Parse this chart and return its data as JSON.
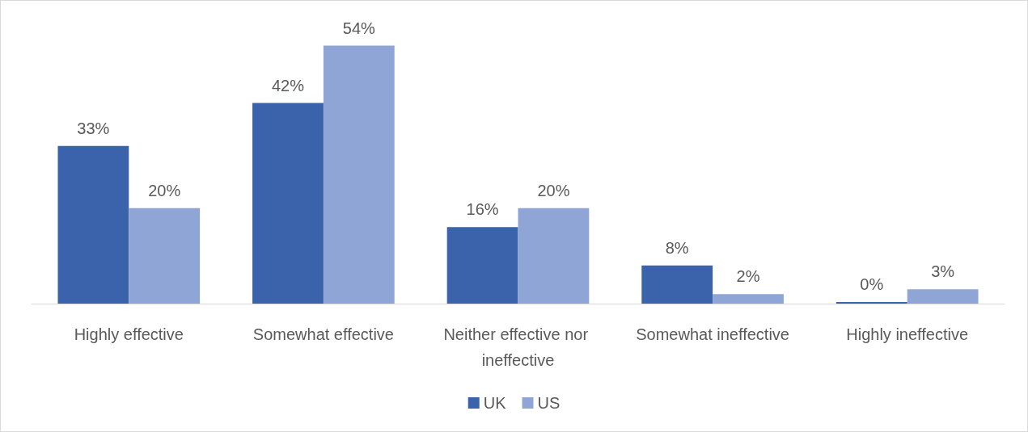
{
  "chart_data": {
    "type": "bar",
    "categories": [
      "Highly effective",
      "Somewhat effective",
      "Neither effective nor ineffective",
      "Somewhat ineffective",
      "Highly ineffective"
    ],
    "series": [
      {
        "name": "UK",
        "color": "#3a63ab",
        "values": [
          33,
          42,
          16,
          8,
          0
        ],
        "value_labels": [
          "33%",
          "42%",
          "16%",
          "8%",
          "0%"
        ]
      },
      {
        "name": "US",
        "color": "#8fa5d6",
        "values": [
          20,
          54,
          20,
          2,
          3
        ],
        "value_labels": [
          "20%",
          "54%",
          "20%",
          "2%",
          "3%"
        ]
      }
    ],
    "legend": "bottom",
    "tick_labels": "x"
  }
}
